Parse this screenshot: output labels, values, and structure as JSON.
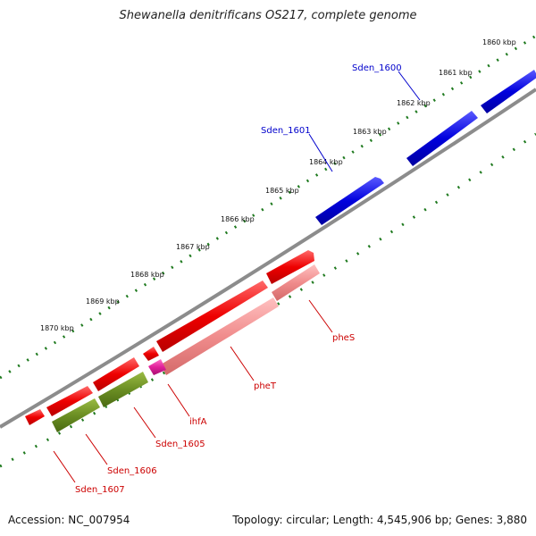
{
  "title": "Shewanella denitrificans OS217, complete genome",
  "footer": {
    "accession": "Accession: NC_007954",
    "info": "Topology: circular; Length: 4,545,906 bp; Genes: 3,880"
  },
  "colors": {
    "backbone": "#8c8c8c",
    "tick": "#1f7a1f",
    "forward_gene": "#0000dd",
    "reverse_gene": "#ee0000",
    "rna_gene": "#f08c8c",
    "cds_alt": "#6b8e23",
    "pseudo": "#e0209a",
    "label_forward": "#0000cc",
    "label_reverse": "#cc0000"
  },
  "kbp_ticks": [
    "1860 kbp",
    "1861 kbp",
    "1862 kbp",
    "1863 kbp",
    "1864 kbp",
    "1865 kbp",
    "1866 kbp",
    "1867 kbp",
    "1868 kbp",
    "1869 kbp",
    "1870 kbp"
  ],
  "genes": [
    {
      "name": "Sden_1600",
      "strand": "forward",
      "color": "forward_gene"
    },
    {
      "name": "Sden_1601",
      "strand": "forward",
      "color": "forward_gene"
    },
    {
      "name": "pheS",
      "strand": "reverse",
      "color": "rna_gene"
    },
    {
      "name": "pheT",
      "strand": "reverse",
      "color": "rna_gene"
    },
    {
      "name": "ihfA",
      "strand": "reverse",
      "color": "pseudo"
    },
    {
      "name": "Sden_1605",
      "strand": "reverse",
      "color": "cds_alt"
    },
    {
      "name": "Sden_1606",
      "strand": "reverse",
      "color": "cds_alt"
    },
    {
      "name": "Sden_1607",
      "strand": "reverse",
      "color": "reverse_gene"
    }
  ]
}
